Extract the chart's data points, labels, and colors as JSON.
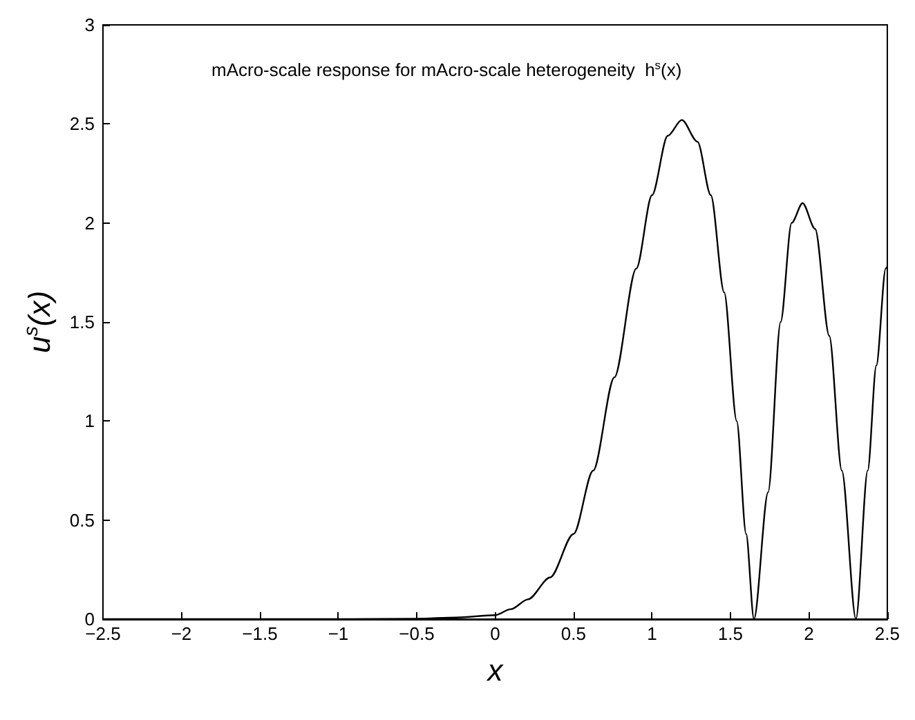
{
  "chart_data": {
    "type": "line",
    "title": "mAcro-scale response for mAcro-scale heterogeneity  h$^{s}$(x)",
    "xlabel": "x",
    "ylabel": "u$^{s}$(x)",
    "x": [
      -2.5,
      -2,
      -1.5,
      -1,
      -0.5,
      -0.25,
      0,
      0.1,
      0.21,
      0.35,
      0.5,
      0.625,
      0.76,
      0.9,
      1.0,
      1.1,
      1.19,
      1.29,
      1.375,
      1.46,
      1.54,
      1.6,
      1.65,
      1.74,
      1.82,
      1.89,
      1.96,
      2.04,
      2.13,
      2.21,
      2.3,
      2.375,
      2.43,
      2.49,
      2.5
    ],
    "series": [
      {
        "color": "#000000",
        "values": [
          0,
          0,
          0,
          0,
          0.002,
          0.008,
          0.02,
          0.05,
          0.1,
          0.21,
          0.43,
          0.75,
          1.22,
          1.77,
          2.14,
          2.44,
          2.52,
          2.41,
          2.14,
          1.65,
          1.0,
          0.43,
          0,
          0.64,
          1.5,
          2.0,
          2.1,
          1.97,
          1.43,
          0.75,
          0,
          0.75,
          1.28,
          1.77,
          1.78
        ]
      }
    ],
    "xlim": [
      -2.5,
      2.5
    ],
    "xticks": [
      -2.5,
      -2,
      -1.5,
      -1,
      -0.5,
      0,
      0.5,
      1,
      1.5,
      2,
      2.5
    ],
    "ylim": [
      0,
      3
    ],
    "yticks": [
      0,
      0.5,
      1,
      1.5,
      2,
      2.5,
      3
    ],
    "grid": false,
    "marker": "none",
    "line_style": "solid"
  }
}
